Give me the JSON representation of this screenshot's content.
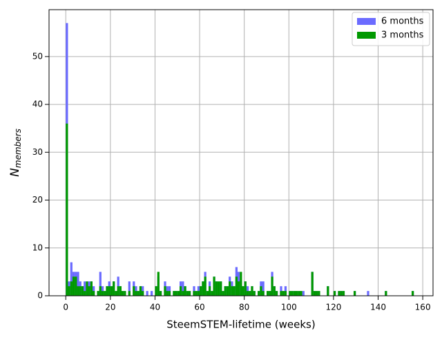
{
  "chart_data": {
    "type": "histogram",
    "xlabel": "SteemSTEM-lifetime (weeks)",
    "ylabel": "N",
    "ylabel_sub": "members",
    "bins": [
      0,
      1,
      2,
      3,
      4,
      5,
      6,
      7,
      8,
      9,
      10,
      11,
      12,
      13,
      14,
      15,
      16,
      17,
      18,
      19,
      20,
      21,
      22,
      23,
      24,
      25,
      26,
      27,
      28,
      29,
      30,
      31,
      32,
      33,
      34,
      35,
      36,
      37,
      38,
      39,
      40,
      41,
      42,
      43,
      44,
      45,
      46,
      47,
      48,
      49,
      50,
      51,
      52,
      53,
      54,
      55,
      56,
      57,
      58,
      59,
      60,
      61,
      62,
      63,
      64,
      65,
      66,
      67,
      68,
      69,
      70,
      71,
      72,
      73,
      74,
      75,
      76,
      77,
      78,
      79,
      80,
      81,
      82,
      83,
      84,
      85,
      86,
      87,
      88,
      89,
      90,
      91,
      92,
      93,
      94,
      95,
      96,
      97,
      98,
      99,
      100,
      101,
      102,
      103,
      104,
      105,
      106,
      107,
      108,
      109,
      110,
      111,
      112,
      113,
      114,
      115,
      116,
      117,
      118,
      119,
      120,
      121,
      122,
      123,
      124,
      125,
      126,
      127,
      128,
      129,
      130,
      131,
      132,
      133,
      134,
      135,
      136,
      137,
      138,
      139,
      140,
      141,
      142,
      143,
      144,
      145,
      146,
      147,
      148,
      149,
      150,
      151,
      152,
      153,
      154,
      155,
      156,
      157
    ],
    "series": [
      {
        "name": "6 months",
        "color": "#6b6bff",
        "values": [
          57,
          3,
          7,
          5,
          5,
          5,
          3,
          2,
          3,
          2,
          3,
          3,
          2,
          0,
          1,
          5,
          2,
          1,
          2,
          3,
          2,
          3,
          1,
          4,
          2,
          1,
          1,
          0,
          3,
          0,
          3,
          2,
          1,
          2,
          2,
          0,
          1,
          0,
          1,
          0,
          2,
          4,
          1,
          0,
          3,
          2,
          2,
          0,
          1,
          1,
          1,
          3,
          3,
          2,
          1,
          1,
          0,
          2,
          1,
          2,
          2,
          3,
          5,
          1,
          3,
          1,
          4,
          3,
          2,
          3,
          1,
          2,
          2,
          4,
          3,
          2,
          6,
          5,
          3,
          2,
          3,
          2,
          1,
          2,
          1,
          0,
          1,
          3,
          3,
          0,
          1,
          1,
          5,
          2,
          1,
          0,
          2,
          1,
          2,
          0,
          1,
          1,
          1,
          1,
          1,
          0,
          1,
          0,
          0,
          0,
          5,
          1,
          1,
          1,
          0,
          0,
          0,
          2,
          0,
          0,
          1,
          0,
          1,
          1,
          1,
          0,
          0,
          0,
          0,
          1,
          0,
          0,
          0,
          0,
          0,
          1,
          0,
          0,
          0,
          0,
          0,
          0,
          0,
          1,
          0,
          0,
          0,
          0,
          0,
          0,
          0,
          0,
          0,
          0,
          0,
          1,
          0
        ]
      },
      {
        "name": "3 months",
        "color": "#009900",
        "values": [
          36,
          2,
          3,
          4,
          4,
          2,
          2,
          2,
          1,
          3,
          2,
          3,
          1,
          0,
          1,
          2,
          1,
          1,
          2,
          2,
          2,
          3,
          1,
          2,
          2,
          1,
          1,
          0,
          1,
          0,
          2,
          1,
          1,
          2,
          1,
          0,
          0,
          0,
          0,
          0,
          2,
          5,
          1,
          0,
          2,
          1,
          1,
          0,
          1,
          1,
          1,
          2,
          1,
          2,
          1,
          1,
          0,
          1,
          1,
          1,
          2,
          3,
          4,
          1,
          2,
          1,
          4,
          3,
          3,
          3,
          1,
          2,
          2,
          3,
          2,
          2,
          4,
          3,
          5,
          2,
          3,
          1,
          1,
          2,
          1,
          0,
          1,
          2,
          1,
          0,
          1,
          1,
          4,
          2,
          1,
          0,
          1,
          1,
          1,
          0,
          1,
          1,
          1,
          1,
          1,
          1,
          0,
          0,
          0,
          0,
          5,
          1,
          1,
          1,
          0,
          0,
          0,
          2,
          0,
          0,
          1,
          0,
          1,
          1,
          1,
          0,
          0,
          0,
          0,
          1,
          0,
          0,
          0,
          0,
          0,
          0,
          0,
          0,
          0,
          0,
          0,
          0,
          0,
          1,
          0,
          0,
          0,
          0,
          0,
          0,
          0,
          0,
          0,
          0,
          0,
          1,
          0
        ]
      }
    ],
    "xlim": [
      -7.5,
      164.6
    ],
    "ylim": [
      0,
      59.8
    ],
    "xticks": [
      0,
      20,
      40,
      60,
      80,
      100,
      120,
      140,
      160
    ],
    "yticks": [
      0,
      10,
      20,
      30,
      40,
      50
    ],
    "grid": true,
    "legend": "upper right"
  }
}
